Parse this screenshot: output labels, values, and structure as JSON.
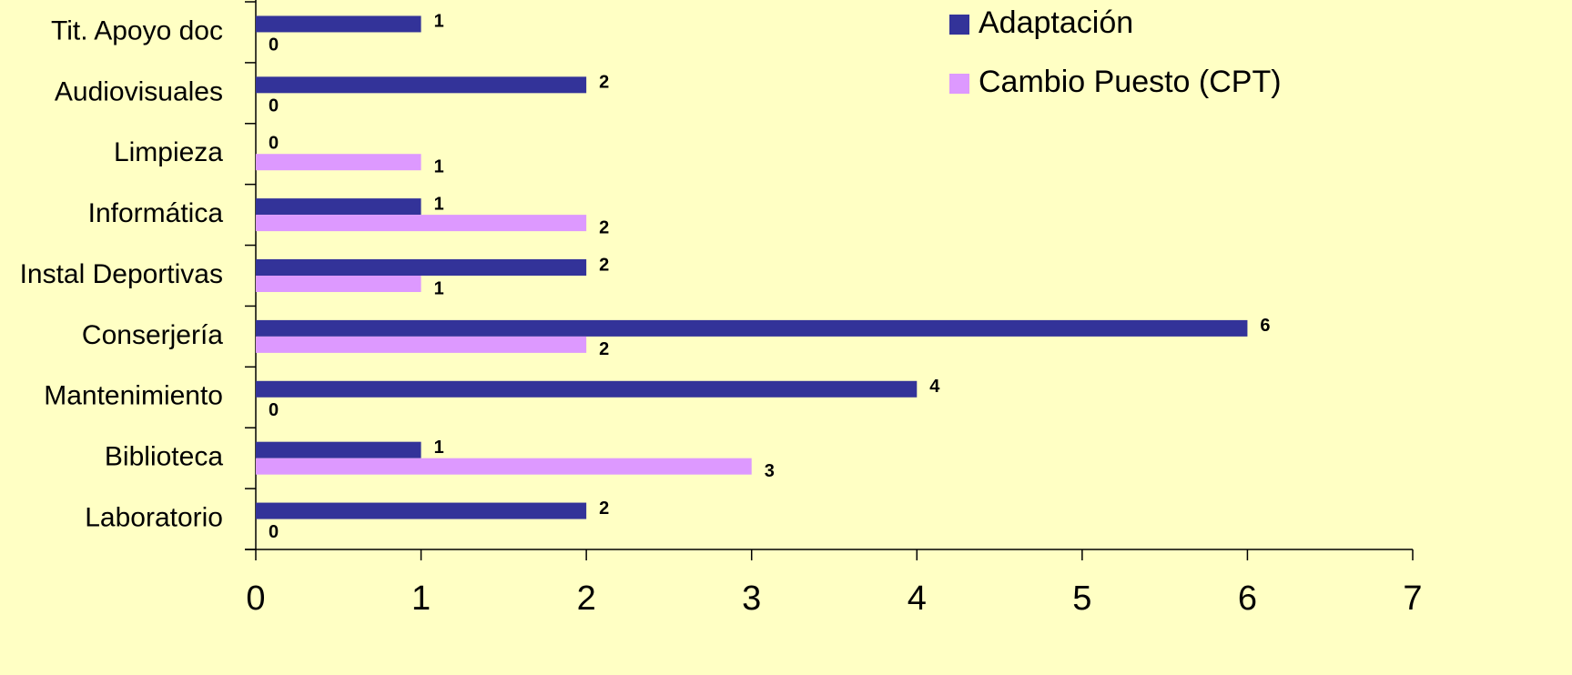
{
  "chart_data": {
    "type": "hbar",
    "categories": [
      "Tit. Apoyo doc",
      "Audiovisuales",
      "Limpieza",
      "Informática",
      "Instal Deportivas",
      "Conserjería",
      "Mantenimiento",
      "Biblioteca",
      "Laboratorio"
    ],
    "series": [
      {
        "name": "Adaptación",
        "color": "#333399",
        "values": [
          1,
          2,
          0,
          1,
          2,
          6,
          4,
          1,
          2
        ]
      },
      {
        "name": "Cambio Puesto (CPT)",
        "color": "#dd99ff",
        "values": [
          0,
          0,
          1,
          2,
          1,
          2,
          0,
          3,
          0
        ]
      }
    ],
    "xlim": [
      0,
      7
    ],
    "xticks": [
      0,
      1,
      2,
      3,
      4,
      5,
      6,
      7
    ],
    "legend": "top-right"
  }
}
